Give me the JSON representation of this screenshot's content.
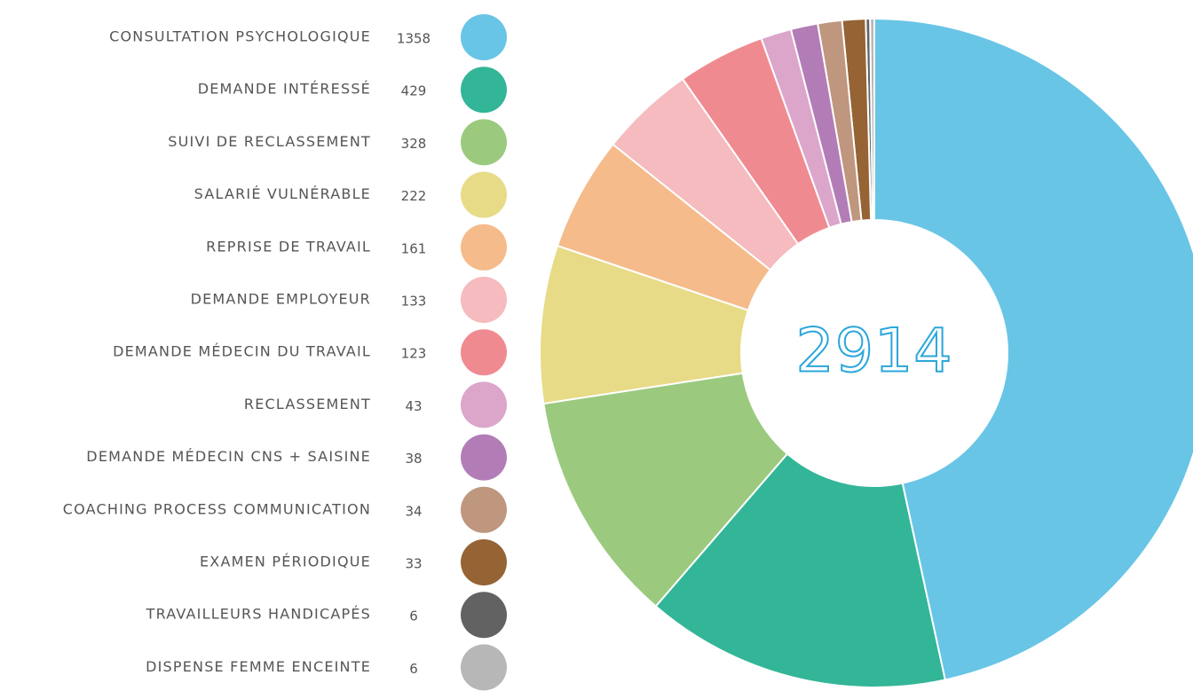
{
  "chart_data": {
    "type": "donut",
    "total": 2914,
    "categories": [
      "CONSULTATION PSYCHOLOGIQUE",
      "DEMANDE INTÉRESSÉ",
      "SUIVI DE RECLASSEMENT",
      "SALARIÉ VULNÉRABLE",
      "REPRISE DE TRAVAIL",
      "DEMANDE EMPLOYEUR",
      "DEMANDE MÉDECIN DU TRAVAIL",
      "RECLASSEMENT",
      "DEMANDE MÉDECIN CNS + SAISINE",
      "COACHING PROCESS COMMUNICATION",
      "EXAMEN PÉRIODIQUE",
      "TRAVAILLEURS HANDICAPÉS",
      "DISPENSE FEMME ENCEINTE"
    ],
    "values": [
      1358,
      429,
      328,
      222,
      161,
      133,
      123,
      43,
      38,
      34,
      33,
      6,
      6
    ],
    "colors": [
      "#68c5e6",
      "#33b598",
      "#9bca7f",
      "#e7db87",
      "#f5bb8b",
      "#f5bbbf",
      "#f08a91",
      "#dca6cb",
      "#b27db7",
      "#bf967e",
      "#956334",
      "#626262",
      "#b7b7b7"
    ]
  }
}
